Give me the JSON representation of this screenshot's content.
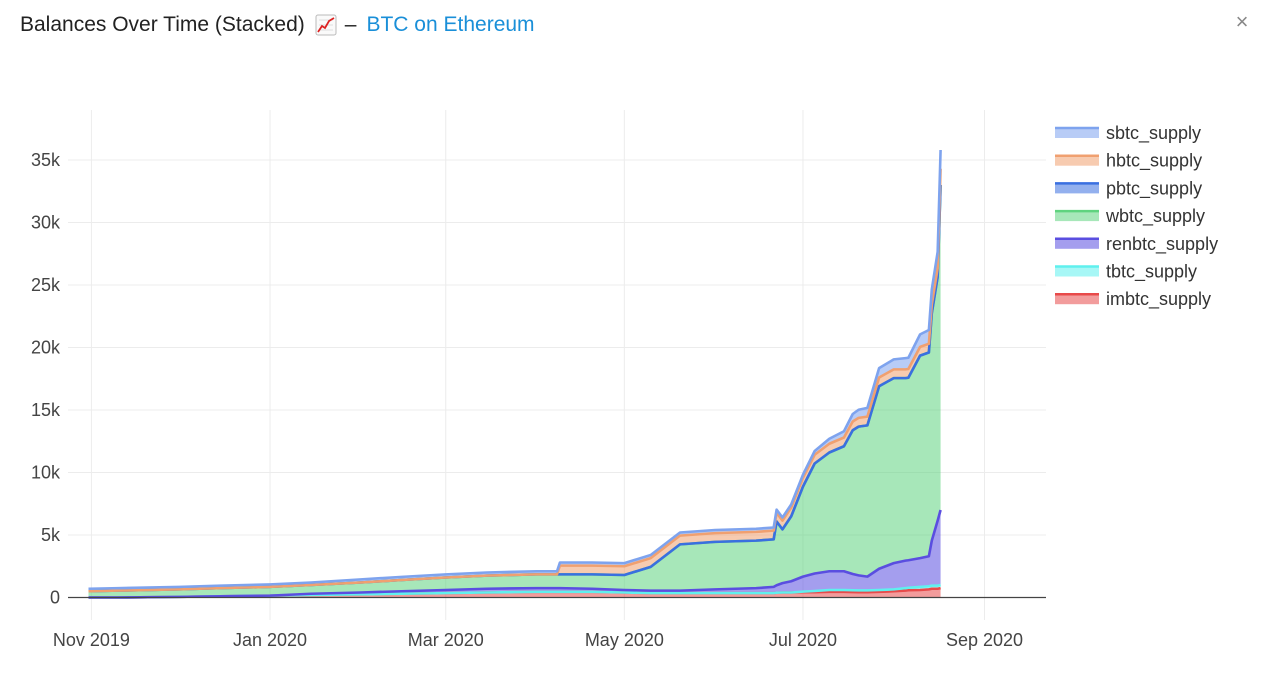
{
  "header": {
    "title": "Balances Over Time (Stacked)",
    "chart_icon": "chart-increasing-icon",
    "separator": "–",
    "subtitle_link": "BTC on Ethereum",
    "close_label": "×"
  },
  "colors": {
    "sbtc_supply": "#7ea3ee",
    "hbtc_supply": "#f0a070",
    "pbtc_supply": "#3a6fe0",
    "wbtc_supply": "#5fd37f",
    "renbtc_supply": "#5a4ee0",
    "tbtc_supply": "#5ff0ee",
    "imbtc_supply": "#e84a4a",
    "link": "#1a8fd8"
  },
  "chart_data": {
    "type": "area",
    "stacked": true,
    "title": "Balances Over Time (Stacked)",
    "x_tick_labels": [
      "Nov 2019",
      "Jan 2020",
      "Mar 2020",
      "May 2020",
      "Jul 2020",
      "Sep 2020"
    ],
    "x_tick_dates": [
      "2019-11-01",
      "2020-01-01",
      "2020-03-01",
      "2020-05-01",
      "2020-07-01",
      "2020-09-01"
    ],
    "y_tick_labels": [
      "0",
      "5k",
      "10k",
      "15k",
      "20k",
      "25k",
      "30k",
      "35k"
    ],
    "y_tick_values": [
      0,
      5000,
      10000,
      15000,
      20000,
      25000,
      30000,
      35000
    ],
    "xlim": [
      "2019-10-24",
      "2020-09-22"
    ],
    "ylim": [
      -1800,
      39000
    ],
    "grid": true,
    "legend_position": "top-right",
    "x": [
      "2019-10-31",
      "2019-11-10",
      "2019-12-01",
      "2019-12-15",
      "2020-01-01",
      "2020-01-15",
      "2020-02-01",
      "2020-02-15",
      "2020-03-01",
      "2020-03-15",
      "2020-04-01",
      "2020-04-08",
      "2020-04-09",
      "2020-04-20",
      "2020-05-01",
      "2020-05-10",
      "2020-05-20",
      "2020-06-01",
      "2020-06-15",
      "2020-06-21",
      "2020-06-22",
      "2020-06-24",
      "2020-06-27",
      "2020-07-01",
      "2020-07-05",
      "2020-07-10",
      "2020-07-15",
      "2020-07-18",
      "2020-07-20",
      "2020-07-23",
      "2020-07-27",
      "2020-08-01",
      "2020-08-05",
      "2020-08-06",
      "2020-08-10",
      "2020-08-13",
      "2020-08-14",
      "2020-08-16",
      "2020-08-17"
    ],
    "series": [
      {
        "name": "imbtc_supply",
        "values": [
          0,
          0,
          50,
          100,
          150,
          200,
          250,
          300,
          350,
          400,
          450,
          450,
          450,
          450,
          400,
          350,
          350,
          350,
          350,
          350,
          380,
          400,
          400,
          420,
          420,
          450,
          450,
          430,
          420,
          420,
          450,
          500,
          550,
          580,
          600,
          650,
          700,
          700,
          750
        ]
      },
      {
        "name": "tbtc_supply",
        "values": [
          0,
          0,
          0,
          0,
          0,
          0,
          0,
          0,
          0,
          0,
          0,
          0,
          0,
          0,
          0,
          0,
          0,
          0,
          0,
          0,
          0,
          0,
          0,
          50,
          100,
          150,
          150,
          150,
          150,
          150,
          150,
          150,
          200,
          200,
          250,
          250,
          250,
          250,
          250
        ]
      },
      {
        "name": "renbtc_supply",
        "values": [
          0,
          0,
          0,
          0,
          0,
          100,
          150,
          200,
          250,
          300,
          300,
          300,
          300,
          250,
          200,
          200,
          200,
          300,
          400,
          500,
          600,
          750,
          900,
          1200,
          1400,
          1500,
          1500,
          1300,
          1200,
          1100,
          1700,
          2100,
          2200,
          2200,
          2300,
          2400,
          3600,
          5200,
          6000
        ]
      },
      {
        "name": "wbtc_supply",
        "values": [
          500,
          550,
          600,
          650,
          700,
          700,
          800,
          900,
          1000,
          1050,
          1100,
          1100,
          1100,
          1150,
          1200,
          1900,
          3700,
          3800,
          3800,
          3800,
          5100,
          4300,
          5200,
          7200,
          8800,
          9500,
          10000,
          11500,
          11900,
          12100,
          14600,
          14800,
          14600,
          14600,
          16200,
          16300,
          18200,
          19500,
          26000
        ]
      },
      {
        "name": "pbtc_supply",
        "values": [
          0,
          0,
          0,
          0,
          0,
          0,
          0,
          0,
          0,
          0,
          0,
          0,
          0,
          0,
          0,
          0,
          0,
          0,
          0,
          0,
          0,
          0,
          0,
          0,
          0,
          0,
          0,
          0,
          0,
          0,
          0,
          0,
          0,
          0,
          0,
          0,
          0,
          0,
          0
        ]
      },
      {
        "name": "hbtc_supply",
        "values": [
          0,
          0,
          0,
          0,
          0,
          0,
          0,
          0,
          0,
          0,
          0,
          0,
          700,
          700,
          700,
          700,
          700,
          700,
          700,
          700,
          700,
          700,
          700,
          700,
          700,
          700,
          700,
          700,
          700,
          700,
          700,
          700,
          700,
          700,
          700,
          700,
          700,
          700,
          1300
        ]
      },
      {
        "name": "sbtc_supply",
        "values": [
          200,
          200,
          200,
          200,
          200,
          200,
          250,
          250,
          250,
          250,
          250,
          250,
          250,
          250,
          250,
          250,
          250,
          250,
          250,
          250,
          250,
          250,
          250,
          250,
          300,
          400,
          500,
          600,
          650,
          700,
          750,
          800,
          900,
          900,
          1000,
          1100,
          1200,
          1300,
          1500
        ]
      }
    ]
  }
}
